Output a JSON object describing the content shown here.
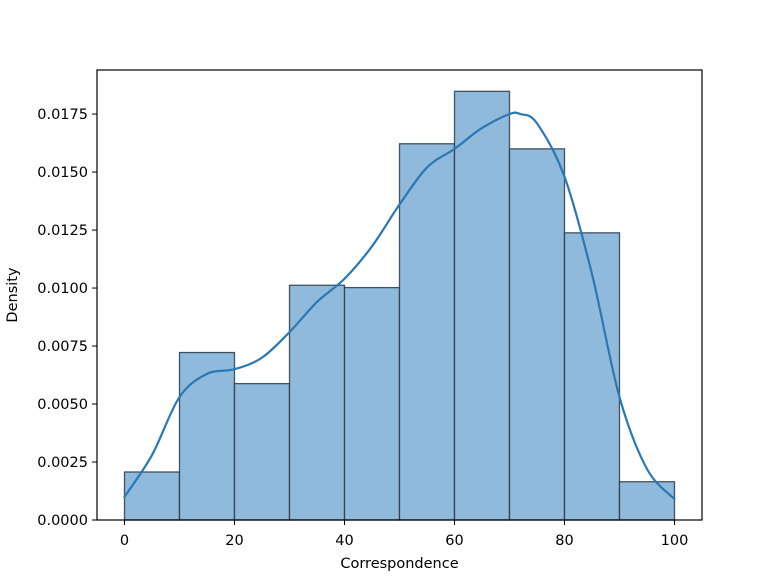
{
  "chart_data": {
    "type": "bar",
    "subtype": "histogram-with-kde",
    "title": "",
    "xlabel": "Correspondence",
    "ylabel": "Density",
    "xlim": [
      -5,
      105
    ],
    "ylim": [
      0,
      0.0194
    ],
    "x_ticks": [
      0,
      20,
      40,
      60,
      80,
      100
    ],
    "x_tick_labels": [
      "0",
      "20",
      "40",
      "60",
      "80",
      "100"
    ],
    "y_ticks": [
      0,
      0.0025,
      0.005,
      0.0075,
      0.01,
      0.0125,
      0.015,
      0.0175
    ],
    "y_tick_labels": [
      "0.0000",
      "0.0025",
      "0.0050",
      "0.0075",
      "0.0100",
      "0.0125",
      "0.0150",
      "0.0175"
    ],
    "grid": false,
    "colors": {
      "bar_fill": "#8fbadb",
      "bar_edge": "#2b3a47",
      "kde_line": "#2a78b4"
    },
    "bins": [
      {
        "x0": 0,
        "x1": 10,
        "density": 0.00207
      },
      {
        "x0": 10,
        "x1": 20,
        "density": 0.00722
      },
      {
        "x0": 20,
        "x1": 30,
        "density": 0.00588
      },
      {
        "x0": 30,
        "x1": 40,
        "density": 0.01012
      },
      {
        "x0": 40,
        "x1": 50,
        "density": 0.01002
      },
      {
        "x0": 50,
        "x1": 60,
        "density": 0.01622
      },
      {
        "x0": 60,
        "x1": 70,
        "density": 0.01848
      },
      {
        "x0": 70,
        "x1": 80,
        "density": 0.016
      },
      {
        "x0": 80,
        "x1": 90,
        "density": 0.01238
      },
      {
        "x0": 90,
        "x1": 100,
        "density": 0.00165
      }
    ],
    "kde": {
      "x": [
        0,
        5,
        10,
        15,
        20,
        25,
        30,
        35,
        40,
        45,
        50,
        55,
        60,
        65,
        70,
        72,
        75,
        80,
        85,
        90,
        95,
        100
      ],
      "y": [
        0.001,
        0.0028,
        0.0053,
        0.0063,
        0.0065,
        0.007,
        0.0081,
        0.0094,
        0.0104,
        0.0118,
        0.0136,
        0.0152,
        0.016,
        0.0169,
        0.0175,
        0.0175,
        0.0171,
        0.0148,
        0.0106,
        0.0053,
        0.0022,
        0.0009
      ]
    }
  }
}
